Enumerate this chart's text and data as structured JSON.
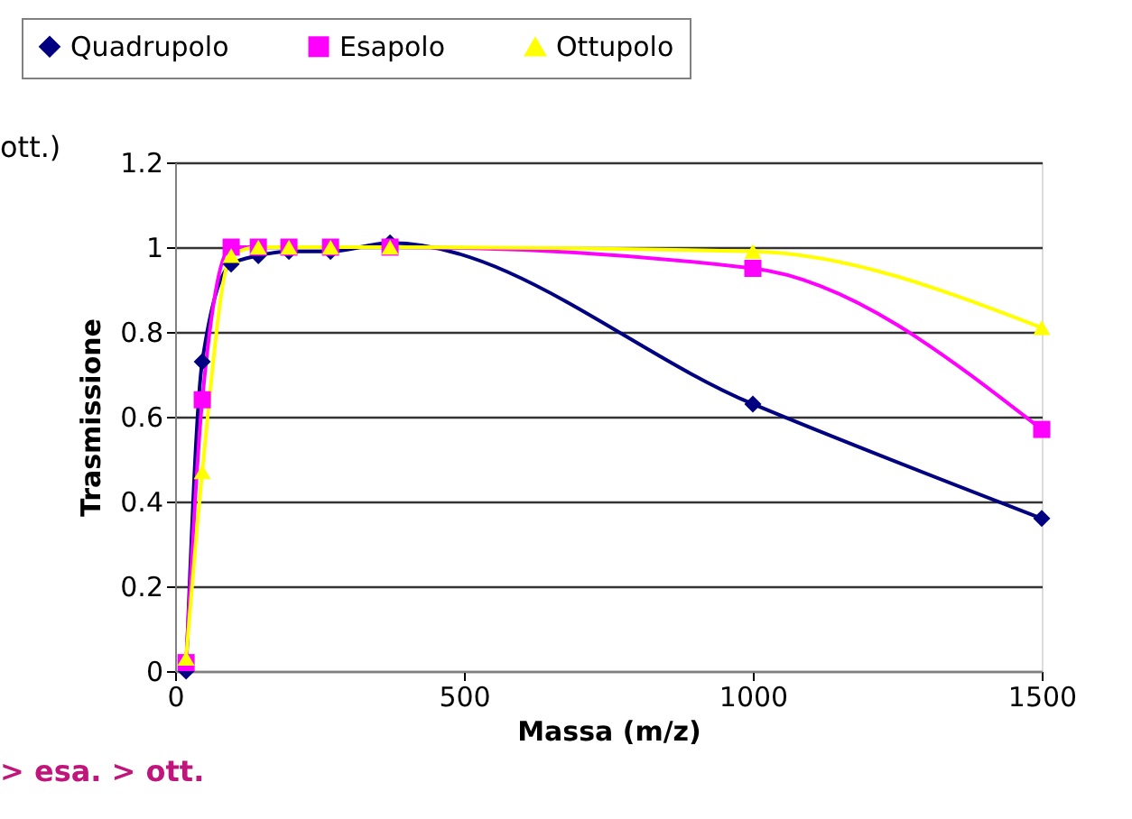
{
  "chart_data": {
    "type": "line",
    "xlabel": "Massa (m/z)",
    "ylabel": "Trasmissione",
    "x": [
      19,
      47,
      97,
      144,
      197,
      269,
      372,
      1000,
      1500
    ],
    "series": [
      {
        "name": "Quadrupolo",
        "color": "#000080",
        "marker": "diamond",
        "values": [
          0,
          0.73,
          0.96,
          0.98,
          0.99,
          0.99,
          1.01,
          0.63,
          0.36
        ]
      },
      {
        "name": "Esapolo",
        "color": "#ff00ff",
        "marker": "square",
        "values": [
          0.02,
          0.64,
          1,
          1,
          1,
          1,
          1,
          0.95,
          0.57
        ]
      },
      {
        "name": "Ottupolo",
        "color": "#ffff00",
        "marker": "triangle",
        "values": [
          0.03,
          0.47,
          0.98,
          1,
          1,
          1,
          1,
          0.99,
          0.81
        ]
      }
    ],
    "xlim": [
      0,
      1500
    ],
    "xticks": [
      0,
      500,
      1000,
      1500
    ],
    "ylim": [
      0,
      1.2
    ],
    "yticks": [
      0,
      0.2,
      0.4,
      0.6,
      0.8,
      1,
      1.2
    ],
    "grid": "y",
    "legend": "top",
    "line_style": "solid",
    "annotations": [
      "ott.)",
      "> esa. > ott."
    ]
  }
}
